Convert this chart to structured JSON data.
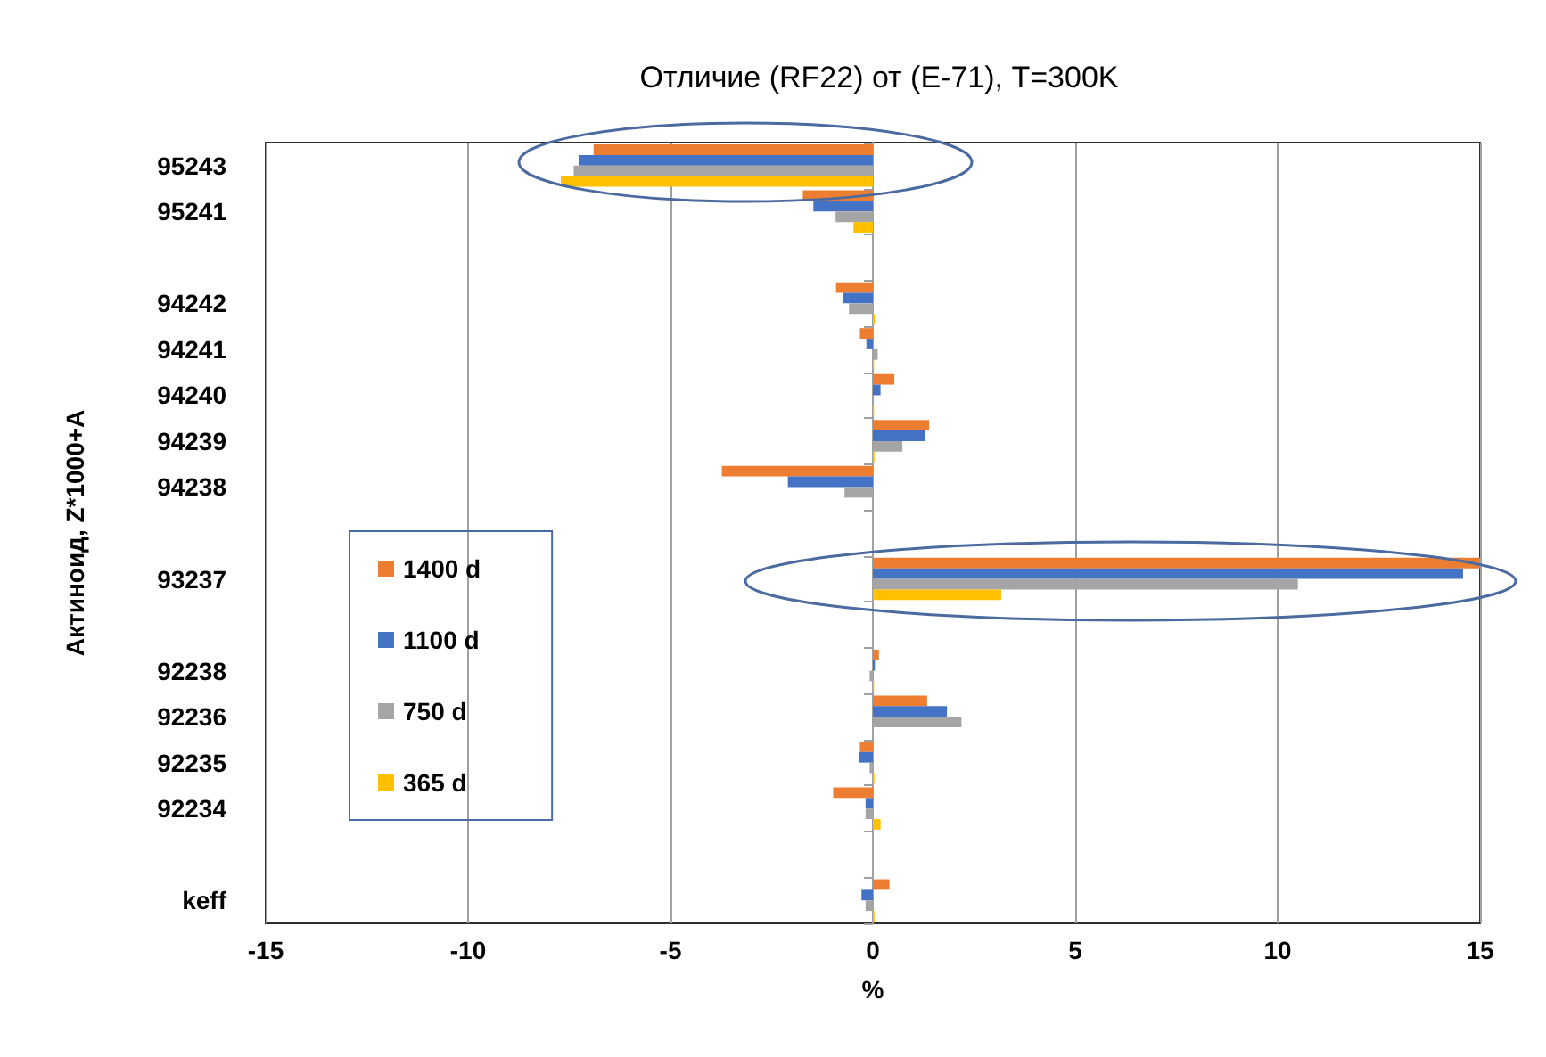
{
  "chart_data": {
    "type": "bar",
    "orientation": "horizontal",
    "title": "Отличие (RF22) от (E-71), T=300K",
    "xlabel": "%",
    "ylabel": "Актиноид, Z*1000+A",
    "categories": [
      "95243",
      "95241",
      null,
      "94242",
      "94241",
      "94240",
      "94239",
      "94238",
      null,
      "93237",
      null,
      "92238",
      "92236",
      "92235",
      "92234",
      null,
      "keff"
    ],
    "series": [
      {
        "name": "1400 d",
        "color": "#ed7d31",
        "values": [
          -6.9,
          -1.73,
          null,
          -0.91,
          -0.32,
          0.53,
          1.39,
          -3.73,
          null,
          15.0,
          null,
          0.15,
          1.34,
          -0.32,
          -0.98,
          null,
          0.41
        ]
      },
      {
        "name": "1100 d",
        "color": "#4472c4",
        "values": [
          -7.27,
          -1.47,
          null,
          -0.73,
          -0.16,
          0.19,
          1.28,
          -2.1,
          null,
          14.58,
          null,
          0.05,
          1.83,
          -0.34,
          -0.18,
          null,
          -0.28
        ]
      },
      {
        "name": "750 d",
        "color": "#a5a5a5",
        "values": [
          -7.39,
          -0.92,
          null,
          -0.59,
          0.12,
          null,
          0.73,
          -0.7,
          null,
          10.5,
          null,
          -0.08,
          2.19,
          -0.08,
          -0.18,
          null,
          -0.18
        ]
      },
      {
        "name": "365 d",
        "color": "#ffc000",
        "values": [
          -7.71,
          -0.48,
          null,
          0.05,
          0.03,
          0.03,
          0.04,
          0,
          null,
          3.17,
          null,
          0.03,
          0,
          0.04,
          0.19,
          null,
          0.04
        ]
      }
    ],
    "xlim": [
      -15,
      15
    ],
    "xticks": [
      -15,
      -10,
      -5,
      0,
      5,
      10,
      15
    ],
    "grid": "x",
    "legend": "left"
  }
}
